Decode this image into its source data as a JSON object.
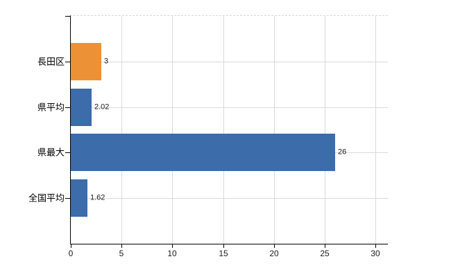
{
  "chart_data": {
    "type": "bar",
    "orientation": "horizontal",
    "title": "",
    "xlabel": "",
    "ylabel": "",
    "categories": [
      "長田区",
      "県平均",
      "県最大",
      "全国平均"
    ],
    "values": [
      3,
      2.02,
      26,
      1.62
    ],
    "value_labels": [
      "3",
      "2.02",
      "26",
      "1.62"
    ],
    "bar_colors": [
      "#EC9136",
      "#3C6CAA",
      "#3C6CAA",
      "#3C6CAA"
    ],
    "xlim": [
      0,
      31.2
    ],
    "xticks": [
      0,
      5,
      10,
      15,
      20,
      25,
      30
    ],
    "grid": true,
    "legend": false,
    "colors": {
      "grid": "#d9d9d9",
      "axis": "#000000",
      "text": "#1a1a1a",
      "background": "#ffffff"
    }
  }
}
